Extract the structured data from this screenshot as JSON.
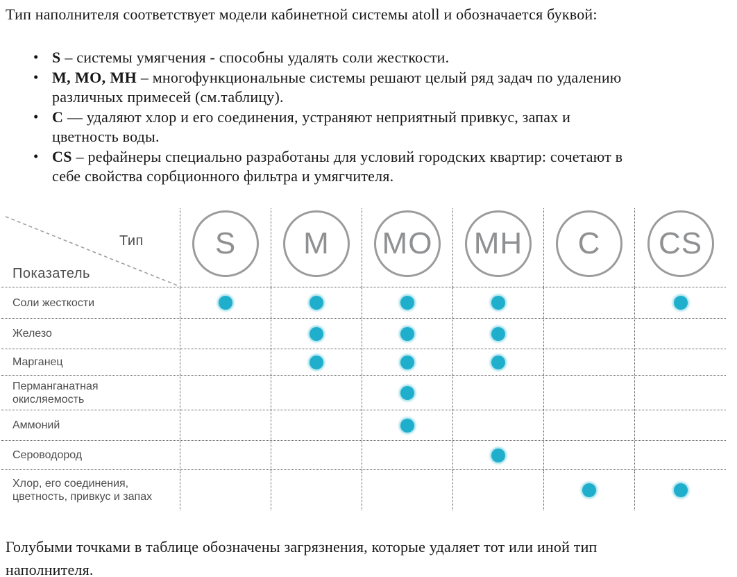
{
  "intro": "Тип наполнителя соответствует модели кабинетной системы atoll и обозначается буквой:",
  "bullets": [
    {
      "term": "S",
      "sep": " – ",
      "text": "системы умягчения  - способны удалять соли жесткости."
    },
    {
      "term": "M, MO, MH",
      "sep": " – ",
      "text": "многофункциональные системы решают целый ряд задач по удалению\nразличных примесей (см.таблицу)."
    },
    {
      "term": "C",
      "sep": " — ",
      "text": "удаляют хлор и его соединения, устраняют неприятный привкус, запах и\nцветность воды."
    },
    {
      "term": "CS",
      "sep": " – ",
      "text": "рефайнеры специально разработаны для условий городских квартир: сочетают в\nсебе свойства сорбционного фильтра и умягчителя."
    }
  ],
  "table": {
    "corner": {
      "type_label": "Тип",
      "indicator_label": "Показатель"
    },
    "columns": [
      "S",
      "M",
      "MO",
      "MH",
      "C",
      "CS"
    ],
    "rows": [
      {
        "label": "Соли жесткости",
        "dots": [
          "S",
          "M",
          "MO",
          "MH",
          "CS"
        ]
      },
      {
        "label": "Железо",
        "dots": [
          "M",
          "MO",
          "MH"
        ]
      },
      {
        "label": "Марганец",
        "dots": [
          "M",
          "MO",
          "MH"
        ]
      },
      {
        "label": "Перманганатная\nокисляемость",
        "dots": [
          "MO"
        ]
      },
      {
        "label": "Аммоний",
        "dots": [
          "MO"
        ]
      },
      {
        "label": "Сероводород",
        "dots": [
          "MH"
        ]
      },
      {
        "label": "Хлор, его соединения,\nцветность, привкус и запах",
        "dots": [
          "C",
          "CS"
        ]
      }
    ],
    "dot_color": "#1fafcd",
    "circle_color": "#9b9b9b"
  },
  "footer": "Голубыми точками в таблице обозначены загрязнения, которые удаляет тот или иной тип\nнаполнителя."
}
